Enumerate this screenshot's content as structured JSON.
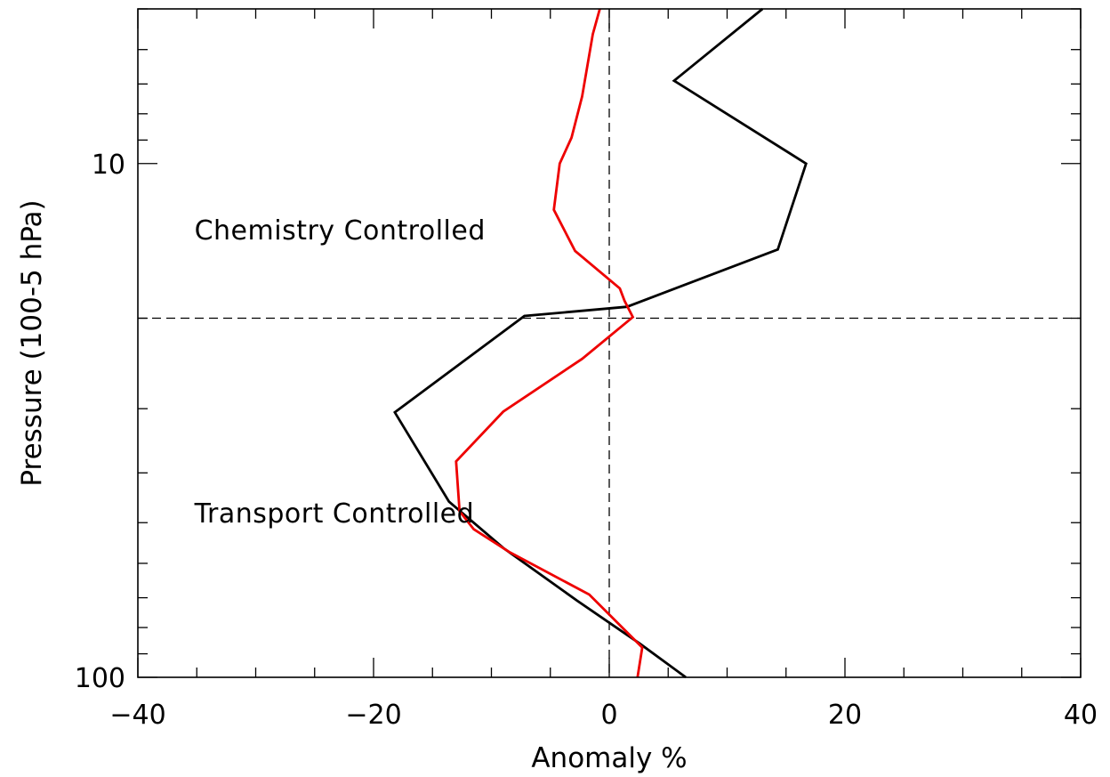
{
  "chart_data": {
    "type": "line",
    "xlabel": "Anomaly %",
    "ylabel": "Pressure (100-5 hPa)",
    "xlim": [
      -40,
      40
    ],
    "ylim": [
      100,
      5
    ],
    "y_scale": "log",
    "x_ticks": [
      -40,
      -20,
      0,
      20,
      40
    ],
    "x_tick_labels": [
      "−40",
      "−20",
      "0",
      "20",
      "40"
    ],
    "y_ticks": [
      10,
      100
    ],
    "y_tick_labels": [
      "10",
      "100"
    ],
    "grid": false,
    "reference_lines": {
      "x": 0,
      "y": 20
    },
    "annotations": [
      {
        "text": "Chemistry Controlled",
        "x": -35.2,
        "y": 13.5
      },
      {
        "text": "Transport Controlled",
        "x": -35.2,
        "y": 48
      }
    ],
    "series": [
      {
        "color": "#000000",
        "points": [
          {
            "x": 13,
            "y": 5
          },
          {
            "x": 5.5,
            "y": 6.9
          },
          {
            "x": 16.7,
            "y": 10
          },
          {
            "x": 14.3,
            "y": 14.7
          },
          {
            "x": 1.5,
            "y": 19
          },
          {
            "x": -7.2,
            "y": 19.8
          },
          {
            "x": -18.2,
            "y": 30.5
          },
          {
            "x": -13.6,
            "y": 45.5
          },
          {
            "x": -9,
            "y": 56
          },
          {
            "x": -2.7,
            "y": 71
          },
          {
            "x": 2.6,
            "y": 86
          },
          {
            "x": 6.5,
            "y": 100
          }
        ]
      },
      {
        "color": "#ee0000",
        "points": [
          {
            "x": -0.8,
            "y": 5
          },
          {
            "x": -1.4,
            "y": 5.6
          },
          {
            "x": -2.3,
            "y": 7.4
          },
          {
            "x": -3.2,
            "y": 8.9
          },
          {
            "x": -4.2,
            "y": 10
          },
          {
            "x": -4.7,
            "y": 12.3
          },
          {
            "x": -2.9,
            "y": 14.8
          },
          {
            "x": 0.9,
            "y": 17.5
          },
          {
            "x": 1.3,
            "y": 18.5
          },
          {
            "x": 2.0,
            "y": 19.9
          },
          {
            "x": -2.3,
            "y": 24
          },
          {
            "x": -9.0,
            "y": 30.4
          },
          {
            "x": -13.0,
            "y": 38
          },
          {
            "x": -12.7,
            "y": 47.5
          },
          {
            "x": -11.5,
            "y": 51.5
          },
          {
            "x": -8.5,
            "y": 57
          },
          {
            "x": -1.7,
            "y": 69
          },
          {
            "x": 2.8,
            "y": 87.5
          },
          {
            "x": 2.4,
            "y": 100
          }
        ]
      }
    ]
  }
}
